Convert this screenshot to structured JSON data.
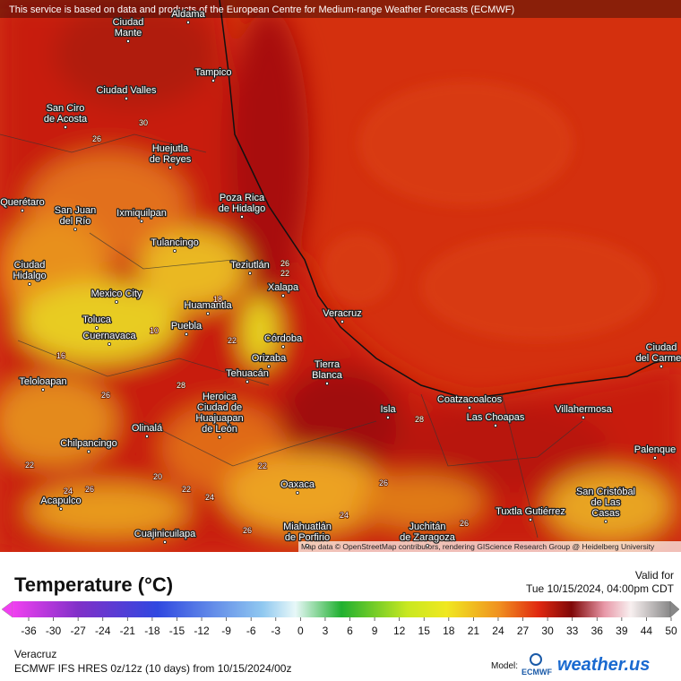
{
  "banner": "This service is based on data and products of the European Centre for Medium-range Weather Forecasts (ECMWF)",
  "attribution": "Map data © OpenStreetMap contributors, rendering GIScience Research Group @ Heidelberg University",
  "cities": [
    [
      "Aldama"
    ],
    [
      "Ciudad",
      "Mante"
    ],
    [
      "Tampico"
    ],
    [
      "Ciudad Valles"
    ],
    [
      "San Ciro",
      "de Acosta"
    ],
    [
      "Huejutla",
      "de Reyes"
    ],
    [
      "Poza Rica",
      "de Hidalgo"
    ],
    [
      "San Juan",
      "del Río"
    ],
    [
      "Ixmiquilpan"
    ],
    [
      "Querétaro"
    ],
    [
      "Tulancingo"
    ],
    [
      "Teziutlán"
    ],
    [
      "Ciudad",
      "Hidalgo"
    ],
    [
      "Xalapa"
    ],
    [
      "Mexico City"
    ],
    [
      "Huamantla"
    ],
    [
      "Veracruz"
    ],
    [
      "Toluca"
    ],
    [
      "Puebla"
    ],
    [
      "Cuernavaca"
    ],
    [
      "Córdoba"
    ],
    [
      "Orizaba"
    ],
    [
      "Tierra",
      "Blanca"
    ],
    [
      "Tehuacán"
    ],
    [
      "Teloloapan"
    ],
    [
      "Heroica",
      "Ciudad de",
      "Huajuapan",
      "de León"
    ],
    [
      "Coatzacoalcos"
    ],
    [
      "Isla"
    ],
    [
      "Villahermosa"
    ],
    [
      "Las Choapas"
    ],
    [
      "Olinalá"
    ],
    [
      "Chilpancingo"
    ],
    [
      "Palenque"
    ],
    [
      "Ciudad",
      "del Carmen"
    ],
    [
      "Oaxaca"
    ],
    [
      "San Cristóbal",
      "de Las",
      "Casas"
    ],
    [
      "Acapulco"
    ],
    [
      "Tuxtla Gutiérrez"
    ],
    [
      "Miahuatlán",
      "de Porfirio"
    ],
    [
      "Juchitán",
      "de Zaragoza"
    ],
    [
      "Cuajinicuilapa"
    ]
  ],
  "contour_labels": [
    26,
    30,
    26,
    22,
    18,
    10,
    22,
    16,
    28,
    26,
    22,
    20,
    22,
    24,
    26,
    24,
    26,
    22,
    24,
    26,
    28,
    26
  ],
  "legend": {
    "title": "Temperature (°C)",
    "ticks": [
      -36,
      -30,
      -27,
      -24,
      -21,
      -18,
      -15,
      -12,
      -9,
      -6,
      -3,
      0,
      3,
      6,
      9,
      12,
      15,
      18,
      21,
      24,
      27,
      30,
      33,
      36,
      39,
      44,
      50
    ]
  },
  "valid": {
    "label": "Valid for",
    "time": "Tue 10/15/2024, 04:00pm CDT"
  },
  "footer": {
    "location": "Veracruz",
    "model_run": "ECMWF IFS HRES 0z/12z (10 days) from 10/15/2024/00z",
    "model_label": "Model:",
    "model_logo": "ECMWF",
    "brand": "weather.us"
  }
}
